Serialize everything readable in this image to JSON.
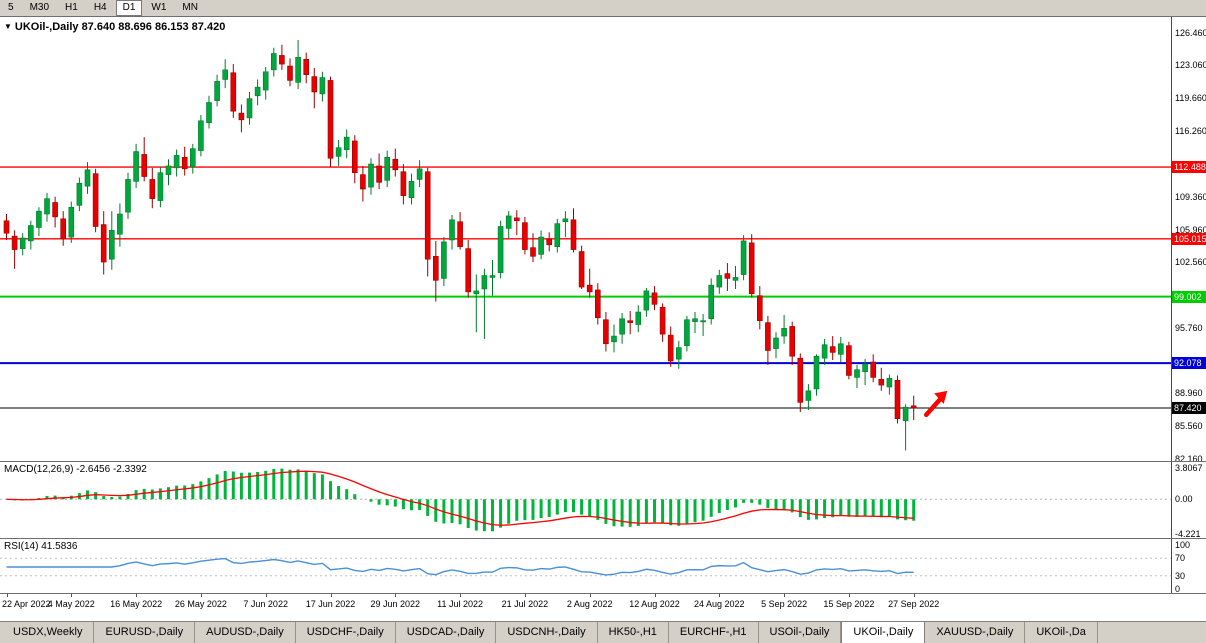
{
  "toolbar": {
    "periods": [
      "5",
      "M30",
      "H1",
      "H4",
      "D1",
      "W1",
      "MN"
    ],
    "active": "D1"
  },
  "chart_header": {
    "collapse_icon": "▼",
    "symbol_title": "UKOil-,Daily",
    "ohlc": "87.640 88.696 86.153 87.420"
  },
  "price_axis": {
    "ticks": [
      "126.460",
      "123.060",
      "119.660",
      "116.260",
      "109.360",
      "105.960",
      "102.560",
      "95.760",
      "88.960",
      "85.560",
      "82.160"
    ],
    "badges": [
      {
        "text": "112.488",
        "bg": "#ff0000",
        "line_width": 1.4
      },
      {
        "text": "105.015",
        "bg": "#ff0000",
        "line_width": 1.4
      },
      {
        "text": "99.002",
        "bg": "#00cc00",
        "line_width": 2
      },
      {
        "text": "92.078",
        "bg": "#0000d8",
        "line_width": 2
      },
      {
        "text": "87.420",
        "bg": "#000000",
        "line_width": 1
      }
    ]
  },
  "macd_panel": {
    "header": "MACD(12,26,9)",
    "values": "-2.6456 -2.3392",
    "axis_labels": [
      {
        "text": "3.8067",
        "value": 3.8067
      },
      {
        "text": "0.00",
        "value": 0
      },
      {
        "text": "-4.221",
        "value": -4.221
      }
    ]
  },
  "rsi_panel": {
    "header": "RSI(14)",
    "value": "41.5836",
    "levels": [
      70,
      30
    ],
    "axis_labels": [
      {
        "text": "100",
        "value": 100
      },
      {
        "text": "70",
        "value": 70
      },
      {
        "text": "30",
        "value": 30
      },
      {
        "text": "0",
        "value": 0
      }
    ]
  },
  "time_axis": {
    "labels": [
      {
        "index": 0,
        "text": "22 Apr 2022"
      },
      {
        "index": 8,
        "text": "4 May 2022"
      },
      {
        "index": 16,
        "text": "16 May 2022"
      },
      {
        "index": 24,
        "text": "26 May 2022"
      },
      {
        "index": 32,
        "text": "7 Jun 2022"
      },
      {
        "index": 40,
        "text": "17 Jun 2022"
      },
      {
        "index": 48,
        "text": "29 Jun 2022"
      },
      {
        "index": 56,
        "text": "11 Jul 2022"
      },
      {
        "index": 64,
        "text": "21 Jul 2022"
      },
      {
        "index": 72,
        "text": "2 Aug 2022"
      },
      {
        "index": 80,
        "text": "12 Aug 2022"
      },
      {
        "index": 88,
        "text": "24 Aug 2022"
      },
      {
        "index": 96,
        "text": "5 Sep 2022"
      },
      {
        "index": 104,
        "text": "15 Sep 2022"
      },
      {
        "index": 112,
        "text": "27 Sep 2022"
      }
    ]
  },
  "tabs": {
    "active_index": 9,
    "items": [
      "USDX,Weekly",
      "EURUSD-,Daily",
      "AUDUSD-,Daily",
      "USDCHF-,Daily",
      "USDCAD-,Daily",
      "USDCNH-,Daily",
      "HK50-,H1",
      "EURCHF-,H1",
      "USOil-,Daily",
      "UKOil-,Daily",
      "XAUUSD-,Daily",
      "UKOil-,Da"
    ]
  },
  "colors": {
    "bull": "#00a73c",
    "bull_wick": "#007a2a",
    "bear": "#e80000",
    "bear_wick": "#9c0000",
    "macd_hist": "#00b43c",
    "macd_signal": "#ff0000",
    "rsi_line": "#4a90d8",
    "arrow": "#ff0000"
  },
  "chart_data": {
    "type": "candlestick",
    "symbol": "UKOil-",
    "timeframe": "Daily",
    "title": "UKOil-,Daily",
    "last_ohlc": {
      "open": 87.64,
      "high": 88.696,
      "low": 86.153,
      "close": 87.42
    },
    "price_range_visible": {
      "min": 81.9,
      "max": 128.1
    },
    "horizontal_lines": [
      112.488,
      105.015,
      99.002,
      92.078,
      87.42
    ],
    "indicators": [
      {
        "name": "MACD",
        "params": [
          12,
          26,
          9
        ],
        "main": -2.6456,
        "signal": -2.3392,
        "axis": [
          3.8067,
          0,
          -4.221
        ]
      },
      {
        "name": "RSI",
        "params": [
          14
        ],
        "value": 41.5836,
        "levels": [
          70,
          30
        ]
      }
    ],
    "candles": [
      [
        106.9,
        107.6,
        104.9,
        105.6
      ],
      [
        105.3,
        105.9,
        101.9,
        103.9
      ],
      [
        104.0,
        105.6,
        103.3,
        105.1
      ],
      [
        104.8,
        106.9,
        103.9,
        106.4
      ],
      [
        106.2,
        108.3,
        105.3,
        107.9
      ],
      [
        107.6,
        109.8,
        106.8,
        109.2
      ],
      [
        108.8,
        109.4,
        106.2,
        107.3
      ],
      [
        107.1,
        107.9,
        104.3,
        105.0
      ],
      [
        105.2,
        108.9,
        104.6,
        108.3
      ],
      [
        108.5,
        111.4,
        107.9,
        110.8
      ],
      [
        110.5,
        113.0,
        109.7,
        112.2
      ],
      [
        111.8,
        112.3,
        105.7,
        106.3
      ],
      [
        106.5,
        107.9,
        101.3,
        102.6
      ],
      [
        102.9,
        107.9,
        101.8,
        105.9
      ],
      [
        105.5,
        108.7,
        104.2,
        107.6
      ],
      [
        107.8,
        111.9,
        107.1,
        111.2
      ],
      [
        111.0,
        114.9,
        110.3,
        114.1
      ],
      [
        113.8,
        115.6,
        111.0,
        111.5
      ],
      [
        111.2,
        112.4,
        108.2,
        109.2
      ],
      [
        109.0,
        112.5,
        108.3,
        111.9
      ],
      [
        111.7,
        113.3,
        110.6,
        112.6
      ],
      [
        112.4,
        114.3,
        111.5,
        113.7
      ],
      [
        113.5,
        114.6,
        111.6,
        112.3
      ],
      [
        112.5,
        114.9,
        111.8,
        114.4
      ],
      [
        114.2,
        117.9,
        113.6,
        117.3
      ],
      [
        117.1,
        119.9,
        116.5,
        119.2
      ],
      [
        119.4,
        122.1,
        118.8,
        121.4
      ],
      [
        121.6,
        123.7,
        120.7,
        122.6
      ],
      [
        122.3,
        123.2,
        117.6,
        118.3
      ],
      [
        118.1,
        119.0,
        116.1,
        117.4
      ],
      [
        117.6,
        120.3,
        116.9,
        119.6
      ],
      [
        119.9,
        121.6,
        118.9,
        120.8
      ],
      [
        120.5,
        122.9,
        119.5,
        122.4
      ],
      [
        122.6,
        124.9,
        121.9,
        124.3
      ],
      [
        124.1,
        125.2,
        122.6,
        123.2
      ],
      [
        123.0,
        123.8,
        120.9,
        121.5
      ],
      [
        121.3,
        125.7,
        120.6,
        123.9
      ],
      [
        123.7,
        124.4,
        121.2,
        122.1
      ],
      [
        121.9,
        122.8,
        118.6,
        120.3
      ],
      [
        120.1,
        122.4,
        119.3,
        121.8
      ],
      [
        121.5,
        121.9,
        112.5,
        113.4
      ],
      [
        113.6,
        115.3,
        112.6,
        114.5
      ],
      [
        114.3,
        116.4,
        113.4,
        115.6
      ],
      [
        115.2,
        115.8,
        110.8,
        111.9
      ],
      [
        111.7,
        112.6,
        108.9,
        110.2
      ],
      [
        110.4,
        113.4,
        109.6,
        112.8
      ],
      [
        112.6,
        113.9,
        110.2,
        110.9
      ],
      [
        111.1,
        114.2,
        110.4,
        113.5
      ],
      [
        113.3,
        114.4,
        111.5,
        112.2
      ],
      [
        112.0,
        112.8,
        108.6,
        109.5
      ],
      [
        109.3,
        111.8,
        108.6,
        111.0
      ],
      [
        111.2,
        113.2,
        110.4,
        112.3
      ],
      [
        112.0,
        112.4,
        101.1,
        102.9
      ],
      [
        103.2,
        104.8,
        98.5,
        100.7
      ],
      [
        100.9,
        105.2,
        100.1,
        104.7
      ],
      [
        104.9,
        107.5,
        103.9,
        107.0
      ],
      [
        106.8,
        107.8,
        103.9,
        104.2
      ],
      [
        104.0,
        104.9,
        98.9,
        99.5
      ],
      [
        99.3,
        101.3,
        95.3,
        99.6
      ],
      [
        99.8,
        101.9,
        94.6,
        101.2
      ],
      [
        101.0,
        102.8,
        99.1,
        101.2
      ],
      [
        101.5,
        106.9,
        100.9,
        106.3
      ],
      [
        106.1,
        107.9,
        105.1,
        107.4
      ],
      [
        107.2,
        108.0,
        105.4,
        106.9
      ],
      [
        106.7,
        107.3,
        103.4,
        103.9
      ],
      [
        104.1,
        105.6,
        102.6,
        103.2
      ],
      [
        103.4,
        105.9,
        102.9,
        105.2
      ],
      [
        105.0,
        105.7,
        103.7,
        104.4
      ],
      [
        104.2,
        107.1,
        103.6,
        106.6
      ],
      [
        106.8,
        107.9,
        105.2,
        107.1
      ],
      [
        107.0,
        108.2,
        103.6,
        103.9
      ],
      [
        103.7,
        104.3,
        99.8,
        100.0
      ],
      [
        100.2,
        101.9,
        98.9,
        99.5
      ],
      [
        99.7,
        100.4,
        96.1,
        96.8
      ],
      [
        96.6,
        97.4,
        93.3,
        94.1
      ],
      [
        94.3,
        96.1,
        93.2,
        94.9
      ],
      [
        95.1,
        97.3,
        94.1,
        96.7
      ],
      [
        96.5,
        97.5,
        95.1,
        96.3
      ],
      [
        96.1,
        98.1,
        95.3,
        97.4
      ],
      [
        97.6,
        99.9,
        96.9,
        99.6
      ],
      [
        99.4,
        100.1,
        97.6,
        98.2
      ],
      [
        97.9,
        98.3,
        94.3,
        95.1
      ],
      [
        95.0,
        95.9,
        91.7,
        92.3
      ],
      [
        92.5,
        94.4,
        91.5,
        93.7
      ],
      [
        93.9,
        97.0,
        93.3,
        96.6
      ],
      [
        96.4,
        97.4,
        95.2,
        96.7
      ],
      [
        96.5,
        97.2,
        94.9,
        96.5
      ],
      [
        96.7,
        100.9,
        96.1,
        100.2
      ],
      [
        100.0,
        101.8,
        99.3,
        101.2
      ],
      [
        101.4,
        102.5,
        99.6,
        100.9
      ],
      [
        100.7,
        102.2,
        99.8,
        101.0
      ],
      [
        101.3,
        105.4,
        100.7,
        104.8
      ],
      [
        104.6,
        105.5,
        98.9,
        99.3
      ],
      [
        99.1,
        100.1,
        95.6,
        96.5
      ],
      [
        96.3,
        97.0,
        91.9,
        93.4
      ],
      [
        93.6,
        95.3,
        92.6,
        94.7
      ],
      [
        94.9,
        97.1,
        94.1,
        95.7
      ],
      [
        95.9,
        96.4,
        91.9,
        92.8
      ],
      [
        92.6,
        93.1,
        87.0,
        88.0
      ],
      [
        88.2,
        89.9,
        87.2,
        89.2
      ],
      [
        89.4,
        93.0,
        88.7,
        92.8
      ],
      [
        92.6,
        94.6,
        91.9,
        94.0
      ],
      [
        93.8,
        94.9,
        92.4,
        93.2
      ],
      [
        93.0,
        94.8,
        92.2,
        94.1
      ],
      [
        93.9,
        94.3,
        90.4,
        90.8
      ],
      [
        90.6,
        91.9,
        89.5,
        91.4
      ],
      [
        91.2,
        92.5,
        89.8,
        92.0
      ],
      [
        92.2,
        93.0,
        90.1,
        90.6
      ],
      [
        90.4,
        91.6,
        89.2,
        89.8
      ],
      [
        89.6,
        90.9,
        88.8,
        90.5
      ],
      [
        90.3,
        90.8,
        85.8,
        86.3
      ],
      [
        86.1,
        87.8,
        83.0,
        87.5
      ],
      [
        87.64,
        88.696,
        86.153,
        87.42
      ]
    ]
  }
}
